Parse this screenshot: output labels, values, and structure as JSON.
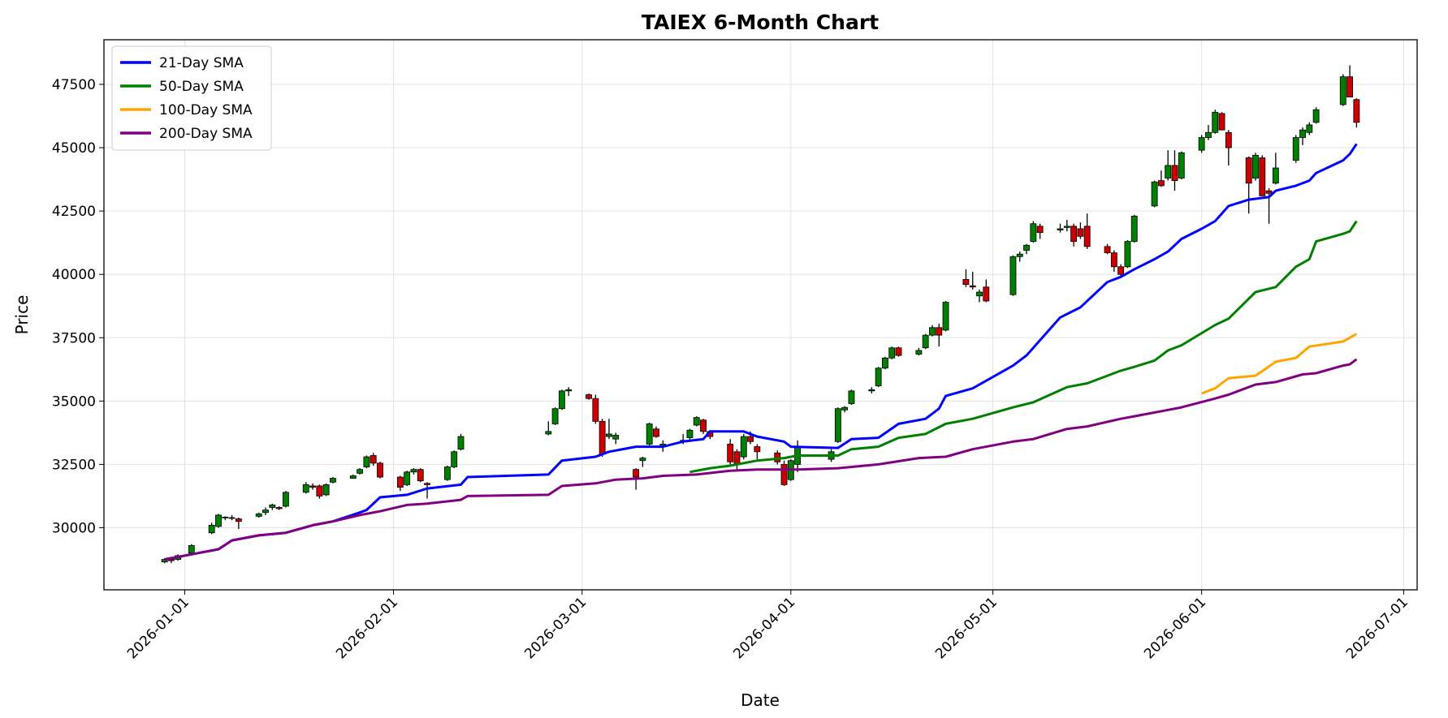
{
  "chart_data": {
    "type": "candlestick",
    "title": "TAIEX 6-Month Chart",
    "x_label": "Date",
    "y_label": "Price",
    "x": [
      "2025-12-29",
      "2025-12-30",
      "2025-12-31",
      "2026-01-02",
      "2026-01-05",
      "2026-01-06",
      "2026-01-07",
      "2026-01-08",
      "2026-01-09",
      "2026-01-12",
      "2026-01-13",
      "2026-01-14",
      "2026-01-15",
      "2026-01-16",
      "2026-01-19",
      "2026-01-20",
      "2026-01-21",
      "2026-01-22",
      "2026-01-23",
      "2026-01-26",
      "2026-01-27",
      "2026-01-28",
      "2026-01-29",
      "2026-01-30",
      "2026-02-02",
      "2026-02-03",
      "2026-02-04",
      "2026-02-05",
      "2026-02-06",
      "2026-02-09",
      "2026-02-10",
      "2026-02-11",
      "2026-02-24",
      "2026-02-25",
      "2026-02-26",
      "2026-02-27",
      "2026-03-02",
      "2026-03-03",
      "2026-03-04",
      "2026-03-05",
      "2026-03-06",
      "2026-03-09",
      "2026-03-10",
      "2026-03-11",
      "2026-03-12",
      "2026-03-13",
      "2026-03-16",
      "2026-03-17",
      "2026-03-18",
      "2026-03-19",
      "2026-03-20",
      "2026-03-23",
      "2026-03-24",
      "2026-03-25",
      "2026-03-26",
      "2026-03-27",
      "2026-03-30",
      "2026-03-31",
      "2026-04-01",
      "2026-04-02",
      "2026-04-07",
      "2026-04-08",
      "2026-04-09",
      "2026-04-10",
      "2026-04-13",
      "2026-04-14",
      "2026-04-15",
      "2026-04-16",
      "2026-04-17",
      "2026-04-20",
      "2026-04-21",
      "2026-04-22",
      "2026-04-23",
      "2026-04-24",
      "2026-04-27",
      "2026-04-28",
      "2026-04-29",
      "2026-04-30",
      "2026-05-04",
      "2026-05-05",
      "2026-05-06",
      "2026-05-07",
      "2026-05-08",
      "2026-05-11",
      "2026-05-12",
      "2026-05-13",
      "2026-05-14",
      "2026-05-15",
      "2026-05-18",
      "2026-05-19",
      "2026-05-20",
      "2026-05-21",
      "2026-05-22",
      "2026-05-25",
      "2026-05-26",
      "2026-05-27",
      "2026-05-28",
      "2026-05-29",
      "2026-06-01",
      "2026-06-02",
      "2026-06-03",
      "2026-06-04",
      "2026-06-05",
      "2026-06-08",
      "2026-06-09",
      "2026-06-10",
      "2026-06-11",
      "2026-06-12",
      "2026-06-15",
      "2026-06-16",
      "2026-06-17",
      "2026-06-18",
      "2026-06-22",
      "2026-06-23",
      "2026-06-24"
    ],
    "open": [
      28650,
      28750,
      28750,
      29000,
      29800,
      30050,
      30400,
      30400,
      30350,
      30450,
      30600,
      30800,
      30800,
      30850,
      31400,
      31650,
      31650,
      31300,
      31800,
      31950,
      32150,
      32400,
      32850,
      32550,
      32000,
      31700,
      32200,
      32300,
      31750,
      31900,
      32400,
      33100,
      33700,
      34100,
      34700,
      35400,
      35250,
      35100,
      34200,
      33600,
      33500,
      32300,
      32650,
      33300,
      33900,
      33200,
      33400,
      33550,
      34050,
      34250,
      33800,
      33300,
      33000,
      32800,
      33600,
      33200,
      32950,
      32500,
      31900,
      32500,
      32700,
      33400,
      34650,
      34900,
      35400,
      35600,
      36300,
      36700,
      37100,
      36850,
      37100,
      37600,
      37900,
      37800,
      39800,
      39550,
      39150,
      39500,
      39200,
      40700,
      40950,
      41300,
      41900,
      41750,
      41850,
      41900,
      41800,
      41900,
      41100,
      40850,
      40300,
      40300,
      41300,
      42700,
      43700,
      43800,
      44300,
      43800,
      44900,
      45400,
      45600,
      46350,
      45600,
      44600,
      43800,
      44600,
      43300,
      43600,
      44500,
      45400,
      45600,
      46000,
      46700,
      47800,
      46900
    ],
    "high": [
      28800,
      28850,
      28950,
      29350,
      30200,
      30550,
      30450,
      30500,
      30400,
      30600,
      30800,
      30950,
      30850,
      31450,
      31800,
      31750,
      31700,
      31750,
      32000,
      32100,
      32350,
      32850,
      32950,
      32600,
      32050,
      32250,
      32350,
      32350,
      31800,
      32450,
      33050,
      33700,
      34200,
      34750,
      35450,
      35550,
      35300,
      35250,
      34300,
      34300,
      33750,
      32350,
      32800,
      34150,
      34000,
      33450,
      33700,
      33900,
      34400,
      34300,
      33850,
      33500,
      33100,
      33700,
      33800,
      33300,
      33050,
      32650,
      32700,
      33450,
      33100,
      34750,
      34800,
      35450,
      35550,
      36350,
      36750,
      37150,
      37150,
      37100,
      37650,
      38000,
      38050,
      38950,
      40200,
      40100,
      39400,
      39800,
      40750,
      40900,
      41200,
      42100,
      42000,
      42000,
      42150,
      42000,
      42050,
      42400,
      41200,
      40950,
      40400,
      41350,
      42350,
      43700,
      44100,
      44900,
      44900,
      44850,
      45500,
      45900,
      46500,
      46400,
      45700,
      44650,
      44800,
      44700,
      43400,
      44800,
      45500,
      45800,
      46000,
      46600,
      47900,
      48250,
      46950
    ],
    "low": [
      28600,
      28600,
      28700,
      28950,
      29750,
      30000,
      30300,
      30300,
      29950,
      30400,
      30500,
      30700,
      30700,
      30800,
      31350,
      31500,
      31150,
      31250,
      31750,
      31950,
      32100,
      32350,
      32450,
      31950,
      31450,
      31650,
      32100,
      31800,
      31150,
      31850,
      32350,
      33050,
      33650,
      34050,
      34650,
      35200,
      35050,
      34100,
      32800,
      33500,
      33300,
      31500,
      32400,
      33200,
      33550,
      33000,
      33300,
      33450,
      34000,
      33700,
      33500,
      32500,
      32300,
      32700,
      33300,
      32700,
      32500,
      31650,
      31850,
      32200,
      32600,
      33350,
      34550,
      34850,
      35300,
      35550,
      36250,
      36650,
      36750,
      36800,
      37050,
      37550,
      37150,
      37750,
      39500,
      39400,
      38900,
      38900,
      39150,
      40500,
      40800,
      41250,
      41400,
      41650,
      41700,
      41100,
      41400,
      41000,
      40800,
      40100,
      39900,
      40250,
      41250,
      42650,
      43450,
      43700,
      43300,
      43750,
      44800,
      45300,
      45550,
      45700,
      44300,
      42400,
      43700,
      43100,
      42000,
      43550,
      44400,
      45100,
      45500,
      45950,
      46650,
      47000,
      45800
    ],
    "close": [
      28750,
      28700,
      28900,
      29300,
      30100,
      30500,
      30420,
      30380,
      30250,
      30550,
      30700,
      30900,
      30750,
      31400,
      31700,
      31600,
      31250,
      31700,
      31950,
      32050,
      32300,
      32800,
      32550,
      32000,
      31600,
      32200,
      32300,
      31850,
      31700,
      32400,
      33000,
      33600,
      33800,
      34700,
      35400,
      35450,
      35100,
      34200,
      32900,
      33700,
      33650,
      32000,
      32750,
      34100,
      33600,
      33300,
      33450,
      33850,
      34350,
      33800,
      33600,
      32600,
      32500,
      33600,
      33400,
      33000,
      32600,
      31700,
      32650,
      33200,
      33000,
      34700,
      34750,
      35400,
      35450,
      36300,
      36700,
      37100,
      36800,
      37000,
      37600,
      37900,
      37600,
      38900,
      39600,
      39500,
      39300,
      38950,
      40700,
      40800,
      41150,
      42000,
      41650,
      41800,
      41900,
      41300,
      41500,
      41100,
      40850,
      40300,
      40000,
      41300,
      42300,
      43650,
      43500,
      44300,
      43700,
      44800,
      45400,
      45600,
      46400,
      45700,
      45000,
      43600,
      44700,
      43100,
      43200,
      44200,
      45400,
      45700,
      45900,
      46500,
      47800,
      47000,
      46000
    ],
    "up_color": "green",
    "down_color": "#cc0000",
    "series": [
      {
        "name": "21-Day SMA",
        "color": "blue",
        "x": [
          "2025-12-29",
          "2026-01-02",
          "2026-01-06",
          "2026-01-08",
          "2026-01-12",
          "2026-01-16",
          "2026-01-20",
          "2026-01-23",
          "2026-01-27",
          "2026-01-28",
          "2026-01-30",
          "2026-02-03",
          "2026-02-06",
          "2026-02-11",
          "2026-02-12",
          "2026-02-24",
          "2026-02-26",
          "2026-03-03",
          "2026-03-05",
          "2026-03-09",
          "2026-03-13",
          "2026-03-16",
          "2026-03-19",
          "2026-03-20",
          "2026-03-25",
          "2026-03-27",
          "2026-03-31",
          "2026-04-01",
          "2026-04-08",
          "2026-04-10",
          "2026-04-14",
          "2026-04-17",
          "2026-04-21",
          "2026-04-23",
          "2026-04-24",
          "2026-04-28",
          "2026-05-04",
          "2026-05-06",
          "2026-05-11",
          "2026-05-14",
          "2026-05-18",
          "2026-05-20",
          "2026-05-22",
          "2026-05-25",
          "2026-05-27",
          "2026-05-29",
          "2026-06-01",
          "2026-06-03",
          "2026-06-05",
          "2026-06-08",
          "2026-06-11",
          "2026-06-12",
          "2026-06-15",
          "2026-06-17",
          "2026-06-18",
          "2026-06-22",
          "2026-06-23",
          "2026-06-24"
        ],
        "values": [
          28750,
          28950,
          29150,
          29500,
          29700,
          29800,
          30100,
          30250,
          30600,
          30700,
          31200,
          31300,
          31550,
          31700,
          32000,
          32100,
          32650,
          32800,
          33000,
          33200,
          33200,
          33400,
          33500,
          33800,
          33800,
          33600,
          33400,
          33200,
          33150,
          33500,
          33550,
          34100,
          34300,
          34700,
          35200,
          35500,
          36400,
          36800,
          38300,
          38700,
          39700,
          39900,
          40200,
          40600,
          40900,
          41400,
          41800,
          42100,
          42700,
          42950,
          43050,
          43300,
          43500,
          43700,
          44000,
          44500,
          44750,
          45150
        ]
      },
      {
        "name": "50-Day SMA",
        "color": "green",
        "x": [
          "2026-03-17",
          "2026-03-20",
          "2026-03-23",
          "2026-03-27",
          "2026-03-31",
          "2026-04-02",
          "2026-04-08",
          "2026-04-10",
          "2026-04-14",
          "2026-04-17",
          "2026-04-21",
          "2026-04-24",
          "2026-04-28",
          "2026-05-04",
          "2026-05-07",
          "2026-05-12",
          "2026-05-15",
          "2026-05-20",
          "2026-05-22",
          "2026-05-25",
          "2026-05-27",
          "2026-05-29",
          "2026-06-03",
          "2026-06-05",
          "2026-06-09",
          "2026-06-12",
          "2026-06-15",
          "2026-06-17",
          "2026-06-18",
          "2026-06-22",
          "2026-06-23",
          "2026-06-24"
        ],
        "values": [
          32200,
          32350,
          32450,
          32650,
          32750,
          32850,
          32850,
          33100,
          33200,
          33550,
          33700,
          34100,
          34300,
          34750,
          34950,
          35550,
          35700,
          36200,
          36350,
          36600,
          37000,
          37200,
          38000,
          38250,
          39300,
          39500,
          40300,
          40600,
          41300,
          41600,
          41700,
          42100
        ]
      },
      {
        "name": "100-Day SMA",
        "color": "orange",
        "x": [
          "2026-06-01",
          "2026-06-03",
          "2026-06-05",
          "2026-06-09",
          "2026-06-12",
          "2026-06-15",
          "2026-06-17",
          "2026-06-22",
          "2026-06-24"
        ],
        "values": [
          35300,
          35500,
          35900,
          36000,
          36550,
          36700,
          37150,
          37350,
          37650
        ]
      },
      {
        "name": "200-Day SMA",
        "color": "purple",
        "x": [
          "2025-12-29",
          "2026-01-02",
          "2026-01-06",
          "2026-01-08",
          "2026-01-12",
          "2026-01-16",
          "2026-01-20",
          "2026-01-23",
          "2026-01-27",
          "2026-01-30",
          "2026-02-03",
          "2026-02-06",
          "2026-02-11",
          "2026-02-12",
          "2026-02-24",
          "2026-02-26",
          "2026-03-03",
          "2026-03-06",
          "2026-03-10",
          "2026-03-13",
          "2026-03-18",
          "2026-03-23",
          "2026-03-27",
          "2026-04-02",
          "2026-04-08",
          "2026-04-14",
          "2026-04-20",
          "2026-04-24",
          "2026-04-28",
          "2026-05-04",
          "2026-05-07",
          "2026-05-12",
          "2026-05-15",
          "2026-05-20",
          "2026-05-22",
          "2026-05-27",
          "2026-05-29",
          "2026-06-03",
          "2026-06-05",
          "2026-06-09",
          "2026-06-12",
          "2026-06-16",
          "2026-06-18",
          "2026-06-22",
          "2026-06-23",
          "2026-06-24"
        ],
        "values": [
          28750,
          28950,
          29150,
          29500,
          29700,
          29800,
          30100,
          30250,
          30500,
          30650,
          30900,
          30950,
          31100,
          31250,
          31300,
          31650,
          31750,
          31900,
          31950,
          32050,
          32100,
          32250,
          32300,
          32300,
          32350,
          32500,
          32750,
          32800,
          33100,
          33400,
          33500,
          33900,
          34000,
          34300,
          34400,
          34650,
          34750,
          35100,
          35250,
          35650,
          35750,
          36050,
          36100,
          36400,
          36450,
          36650
        ]
      }
    ],
    "xlim": [
      "2025-12-20",
      "2026-07-03"
    ],
    "xticks": [
      "2026-01-01",
      "2026-02-01",
      "2026-03-01",
      "2026-04-01",
      "2026-05-01",
      "2026-06-01",
      "2026-07-01"
    ],
    "ylim": [
      27550,
      49260
    ],
    "yticks": [
      30000,
      32500,
      35000,
      37500,
      40000,
      42500,
      45000,
      47500
    ],
    "grid": true,
    "legend": "upper left"
  }
}
